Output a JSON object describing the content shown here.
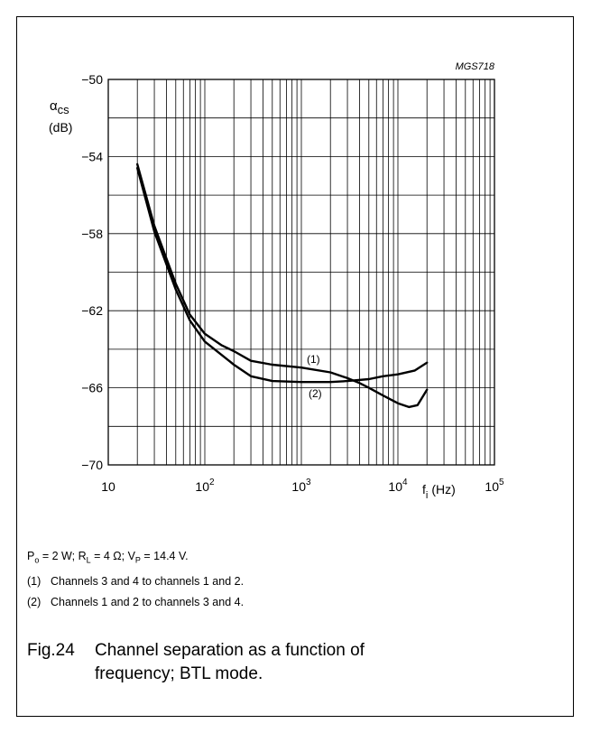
{
  "chart_data": {
    "type": "line",
    "figure_code": "MGS718",
    "ylabel_symbol": "α",
    "ylabel_sub": "cs",
    "ylabel_unit": "(dB)",
    "xlabel_symbol": "f",
    "xlabel_sub": "i",
    "xlabel_unit": "(Hz)",
    "x_scale": "log",
    "xlim": [
      10,
      100000
    ],
    "ylim": [
      -70,
      -50
    ],
    "x_ticks": [
      {
        "base": "10",
        "exp": ""
      },
      {
        "base": "10",
        "exp": "2"
      },
      {
        "base": "10",
        "exp": "3"
      },
      {
        "base": "10",
        "exp": "4"
      },
      {
        "base": "10",
        "exp": "5"
      }
    ],
    "y_ticks": [
      "−50",
      "−54",
      "−58",
      "−62",
      "−66",
      "−70"
    ],
    "grid": true,
    "series": [
      {
        "name": "(1)",
        "points": [
          [
            20,
            -54.4
          ],
          [
            30,
            -57.6
          ],
          [
            50,
            -60.6
          ],
          [
            70,
            -62.2
          ],
          [
            100,
            -63.2
          ],
          [
            150,
            -63.8
          ],
          [
            200,
            -64.1
          ],
          [
            300,
            -64.6
          ],
          [
            500,
            -64.8
          ],
          [
            1000,
            -64.95
          ],
          [
            2000,
            -65.2
          ],
          [
            3000,
            -65.5
          ],
          [
            4000,
            -65.75
          ],
          [
            5000,
            -66.0
          ],
          [
            7000,
            -66.4
          ],
          [
            10000,
            -66.8
          ],
          [
            13000,
            -67.0
          ],
          [
            16000,
            -66.9
          ],
          [
            20000,
            -66.1
          ]
        ]
      },
      {
        "name": "(2)",
        "points": [
          [
            20,
            -54.6
          ],
          [
            30,
            -57.9
          ],
          [
            50,
            -60.9
          ],
          [
            70,
            -62.5
          ],
          [
            100,
            -63.6
          ],
          [
            150,
            -64.3
          ],
          [
            200,
            -64.8
          ],
          [
            300,
            -65.4
          ],
          [
            500,
            -65.65
          ],
          [
            1000,
            -65.7
          ],
          [
            2000,
            -65.7
          ],
          [
            3000,
            -65.65
          ],
          [
            5000,
            -65.55
          ],
          [
            7000,
            -65.4
          ],
          [
            10000,
            -65.3
          ],
          [
            15000,
            -65.1
          ],
          [
            20000,
            -64.7
          ]
        ]
      }
    ],
    "annotations": [
      "(1)",
      "(2)"
    ]
  },
  "notes": {
    "conditions": {
      "p_sym": "P",
      "p_sub": "o",
      "p_val": " = 2 W; ",
      "r_sym": "R",
      "r_sub": "L",
      "r_val": " = 4 Ω; ",
      "v_sym": "V",
      "v_sub": "P",
      "v_val": " = 14.4 V."
    },
    "items": [
      {
        "num": "(1)",
        "text": "Channels 3 and 4 to channels 1 and 2."
      },
      {
        "num": "(2)",
        "text": "Channels 1 and 2 to channels 3 and 4."
      }
    ]
  },
  "caption": {
    "number": "Fig.24",
    "line1": "Channel separation as a function of",
    "line2": "frequency; BTL mode."
  }
}
